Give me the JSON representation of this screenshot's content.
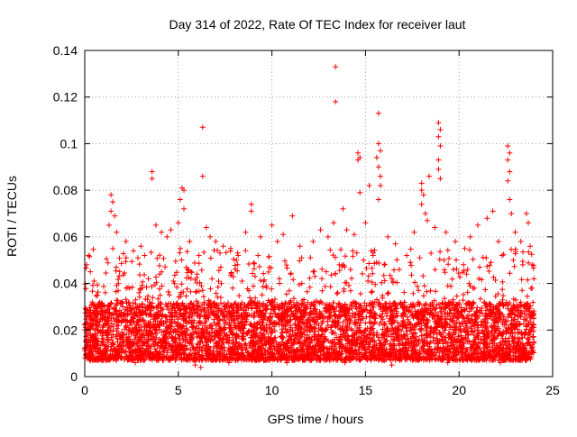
{
  "chart_data": {
    "type": "scatter",
    "title": "Day 314 of 2022, Rate Of TEC Index for receiver laut",
    "xlabel": "GPS time / hours",
    "ylabel": "ROTI / TECUs",
    "xlim": [
      0,
      25
    ],
    "ylim": [
      0,
      0.14
    ],
    "xticks": [
      0,
      5,
      10,
      15,
      20,
      25
    ],
    "yticks": [
      0,
      0.02,
      0.04,
      0.06,
      0.08,
      0.1,
      0.12,
      0.14
    ],
    "grid": true,
    "marker": "+",
    "color": "#ff0000",
    "series": [
      {
        "name": "ROTI",
        "points": [
          [
            0.1,
            0.048
          ],
          [
            0.2,
            0.052
          ],
          [
            0.3,
            0.045
          ],
          [
            0.5,
            0.041
          ],
          [
            1.4,
            0.078
          ],
          [
            1.5,
            0.075
          ],
          [
            1.4,
            0.071
          ],
          [
            1.6,
            0.069
          ],
          [
            1.3,
            0.065
          ],
          [
            1.7,
            0.062
          ],
          [
            2.2,
            0.058
          ],
          [
            2.6,
            0.054
          ],
          [
            3.0,
            0.056
          ],
          [
            3.2,
            0.052
          ],
          [
            3.6,
            0.088
          ],
          [
            3.6,
            0.085
          ],
          [
            3.8,
            0.065
          ],
          [
            4.1,
            0.062
          ],
          [
            4.4,
            0.06
          ],
          [
            4.6,
            0.063
          ],
          [
            5.2,
            0.081
          ],
          [
            5.3,
            0.08
          ],
          [
            5.1,
            0.076
          ],
          [
            5.3,
            0.072
          ],
          [
            5.0,
            0.066
          ],
          [
            5.6,
            0.058
          ],
          [
            6.1,
            0.052
          ],
          [
            6.3,
            0.107
          ],
          [
            6.3,
            0.086
          ],
          [
            6.5,
            0.064
          ],
          [
            6.7,
            0.06
          ],
          [
            7.0,
            0.058
          ],
          [
            7.4,
            0.056
          ],
          [
            7.8,
            0.055
          ],
          [
            8.2,
            0.052
          ],
          [
            8.6,
            0.062
          ],
          [
            8.9,
            0.074
          ],
          [
            8.9,
            0.071
          ],
          [
            9.4,
            0.06
          ],
          [
            10.0,
            0.065
          ],
          [
            10.3,
            0.058
          ],
          [
            10.6,
            0.061
          ],
          [
            11.1,
            0.069
          ],
          [
            11.5,
            0.056
          ],
          [
            12.2,
            0.058
          ],
          [
            12.6,
            0.063
          ],
          [
            13.0,
            0.06
          ],
          [
            13.4,
            0.133
          ],
          [
            13.4,
            0.118
          ],
          [
            13.3,
            0.066
          ],
          [
            13.8,
            0.072
          ],
          [
            14.0,
            0.063
          ],
          [
            14.4,
            0.061
          ],
          [
            14.6,
            0.096
          ],
          [
            14.7,
            0.094
          ],
          [
            14.6,
            0.093
          ],
          [
            14.7,
            0.079
          ],
          [
            15.0,
            0.066
          ],
          [
            15.2,
            0.082
          ],
          [
            15.7,
            0.113
          ],
          [
            15.7,
            0.1
          ],
          [
            15.8,
            0.097
          ],
          [
            15.6,
            0.094
          ],
          [
            15.7,
            0.09
          ],
          [
            15.8,
            0.086
          ],
          [
            15.8,
            0.082
          ],
          [
            15.7,
            0.076
          ],
          [
            16.2,
            0.06
          ],
          [
            16.6,
            0.057
          ],
          [
            17.2,
            0.052
          ],
          [
            17.6,
            0.062
          ],
          [
            18.0,
            0.083
          ],
          [
            18.0,
            0.08
          ],
          [
            18.1,
            0.078
          ],
          [
            18.0,
            0.074
          ],
          [
            18.2,
            0.07
          ],
          [
            18.3,
            0.067
          ],
          [
            18.4,
            0.086
          ],
          [
            18.7,
            0.064
          ],
          [
            18.9,
            0.109
          ],
          [
            19.0,
            0.106
          ],
          [
            18.9,
            0.103
          ],
          [
            19.0,
            0.099
          ],
          [
            18.9,
            0.093
          ],
          [
            18.9,
            0.089
          ],
          [
            19.0,
            0.085
          ],
          [
            19.3,
            0.062
          ],
          [
            19.8,
            0.058
          ],
          [
            20.3,
            0.055
          ],
          [
            20.6,
            0.06
          ],
          [
            21.0,
            0.065
          ],
          [
            21.5,
            0.068
          ],
          [
            21.8,
            0.071
          ],
          [
            22.1,
            0.058
          ],
          [
            22.6,
            0.099
          ],
          [
            22.7,
            0.096
          ],
          [
            22.6,
            0.093
          ],
          [
            22.7,
            0.088
          ],
          [
            22.6,
            0.084
          ],
          [
            22.7,
            0.076
          ],
          [
            22.8,
            0.07
          ],
          [
            23.0,
            0.062
          ],
          [
            23.3,
            0.058
          ],
          [
            23.6,
            0.07
          ],
          [
            23.7,
            0.066
          ],
          [
            23.8,
            0.056
          ],
          [
            23.9,
            0.048
          ],
          [
            24.0,
            0.042
          ],
          [
            0.4,
            0.032
          ],
          [
            0.8,
            0.03
          ],
          [
            1.1,
            0.036
          ],
          [
            1.8,
            0.04
          ],
          [
            2.4,
            0.038
          ],
          [
            2.9,
            0.036
          ],
          [
            3.4,
            0.042
          ],
          [
            4.0,
            0.044
          ],
          [
            4.8,
            0.04
          ],
          [
            5.5,
            0.046
          ],
          [
            6.0,
            0.044
          ],
          [
            6.8,
            0.042
          ],
          [
            7.3,
            0.04
          ],
          [
            7.9,
            0.038
          ],
          [
            8.4,
            0.041
          ],
          [
            9.1,
            0.043
          ],
          [
            9.7,
            0.039
          ],
          [
            10.4,
            0.042
          ],
          [
            11.0,
            0.044
          ],
          [
            11.6,
            0.04
          ],
          [
            12.3,
            0.043
          ],
          [
            12.9,
            0.045
          ],
          [
            13.6,
            0.048
          ],
          [
            14.2,
            0.046
          ],
          [
            14.9,
            0.05
          ],
          [
            15.4,
            0.052
          ],
          [
            16.0,
            0.048
          ],
          [
            16.8,
            0.046
          ],
          [
            17.4,
            0.049
          ],
          [
            17.9,
            0.051
          ],
          [
            18.5,
            0.053
          ],
          [
            19.2,
            0.05
          ],
          [
            19.7,
            0.046
          ],
          [
            20.4,
            0.044
          ],
          [
            21.1,
            0.047
          ],
          [
            21.7,
            0.049
          ],
          [
            22.3,
            0.052
          ],
          [
            22.9,
            0.05
          ],
          [
            23.4,
            0.048
          ],
          [
            23.9,
            0.038
          ],
          [
            0.0,
            0.012
          ],
          [
            0.2,
            0.01
          ],
          [
            0.6,
            0.014
          ],
          [
            1.0,
            0.016
          ],
          [
            1.5,
            0.018
          ],
          [
            2.0,
            0.015
          ],
          [
            2.5,
            0.013
          ],
          [
            3.0,
            0.017
          ],
          [
            3.5,
            0.019
          ],
          [
            4.0,
            0.016
          ],
          [
            4.5,
            0.014
          ],
          [
            5.0,
            0.018
          ],
          [
            5.5,
            0.02
          ],
          [
            6.0,
            0.017
          ],
          [
            6.5,
            0.015
          ],
          [
            7.0,
            0.019
          ],
          [
            7.5,
            0.021
          ],
          [
            8.0,
            0.018
          ],
          [
            8.5,
            0.016
          ],
          [
            9.0,
            0.02
          ],
          [
            9.5,
            0.022
          ],
          [
            10.0,
            0.019
          ],
          [
            10.5,
            0.017
          ],
          [
            11.0,
            0.021
          ],
          [
            11.5,
            0.023
          ],
          [
            12.0,
            0.02
          ],
          [
            12.5,
            0.018
          ],
          [
            13.0,
            0.022
          ],
          [
            13.5,
            0.024
          ],
          [
            14.0,
            0.021
          ],
          [
            14.5,
            0.019
          ],
          [
            15.0,
            0.023
          ],
          [
            15.5,
            0.025
          ],
          [
            16.0,
            0.022
          ],
          [
            16.5,
            0.02
          ],
          [
            17.0,
            0.024
          ],
          [
            17.5,
            0.026
          ],
          [
            18.0,
            0.023
          ],
          [
            18.5,
            0.021
          ],
          [
            19.0,
            0.025
          ],
          [
            19.5,
            0.022
          ],
          [
            20.0,
            0.02
          ],
          [
            20.5,
            0.018
          ],
          [
            21.0,
            0.021
          ],
          [
            21.5,
            0.023
          ],
          [
            22.0,
            0.02
          ],
          [
            22.5,
            0.024
          ],
          [
            23.0,
            0.022
          ],
          [
            23.5,
            0.019
          ],
          [
            24.0,
            0.015
          ],
          [
            0.3,
            0.008
          ],
          [
            1.2,
            0.007
          ],
          [
            2.7,
            0.006
          ],
          [
            4.2,
            0.007
          ],
          [
            5.9,
            0.005
          ],
          [
            6.2,
            0.004
          ],
          [
            7.7,
            0.006
          ],
          [
            9.3,
            0.007
          ],
          [
            10.8,
            0.006
          ],
          [
            12.4,
            0.007
          ],
          [
            13.9,
            0.006
          ],
          [
            15.3,
            0.007
          ],
          [
            16.4,
            0.005
          ],
          [
            17.8,
            0.007
          ],
          [
            19.4,
            0.006
          ],
          [
            20.9,
            0.007
          ],
          [
            22.2,
            0.006
          ],
          [
            23.7,
            0.008
          ]
        ],
        "generated_cloud": {
          "count": 5200,
          "x_range": [
            0,
            24
          ],
          "base_min": 0.007,
          "typical_max": 0.032,
          "tail_max": 0.055
        }
      }
    ]
  }
}
